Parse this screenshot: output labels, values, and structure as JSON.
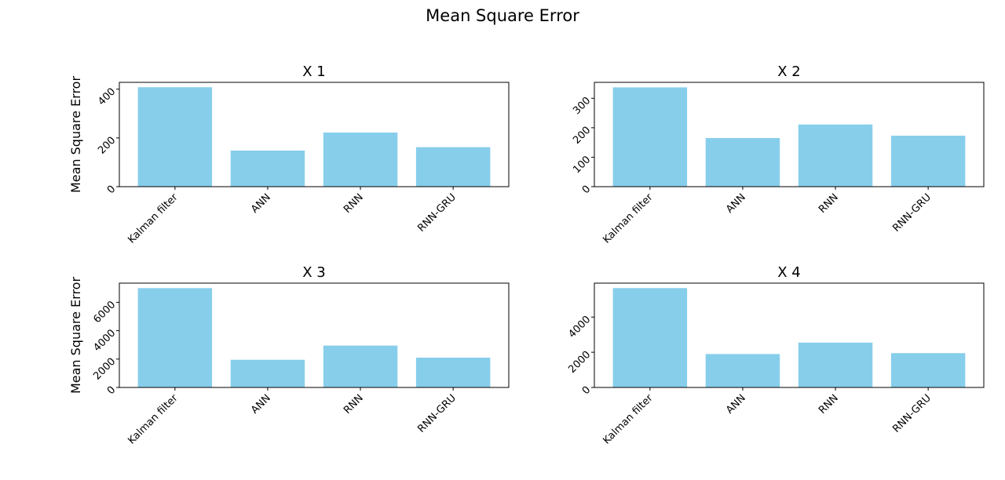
{
  "figure": {
    "suptitle": "Mean Square Error",
    "bar_color": "#87CEEB",
    "axis_color": "#000000"
  },
  "chart_data": [
    {
      "type": "bar",
      "title": "X 1",
      "ylabel": "Mean Square Error",
      "xlabel": "",
      "categories": [
        "Kalman filter",
        "ANN",
        "RNN",
        "RNN-GRU"
      ],
      "values": [
        408,
        148,
        222,
        162
      ],
      "ylim": [
        0,
        428
      ],
      "yticks": [
        0,
        200,
        400
      ]
    },
    {
      "type": "bar",
      "title": "X 2",
      "ylabel": "",
      "xlabel": "",
      "categories": [
        "Kalman filter",
        "ANN",
        "RNN",
        "RNN-GRU"
      ],
      "values": [
        337,
        165,
        211,
        173
      ],
      "ylim": [
        0,
        354
      ],
      "yticks": [
        0,
        100,
        200,
        300
      ]
    },
    {
      "type": "bar",
      "title": "X 3",
      "ylabel": "Mean Square Error",
      "xlabel": "",
      "categories": [
        "Kalman filter",
        "ANN",
        "RNN",
        "RNN-GRU"
      ],
      "values": [
        7000,
        1950,
        2950,
        2100
      ],
      "ylim": [
        0,
        7350
      ],
      "yticks": [
        0,
        2000,
        4000,
        6000
      ]
    },
    {
      "type": "bar",
      "title": "X 4",
      "ylabel": "",
      "xlabel": "",
      "categories": [
        "Kalman filter",
        "ANN",
        "RNN",
        "RNN-GRU"
      ],
      "values": [
        5650,
        1900,
        2550,
        1950
      ],
      "ylim": [
        0,
        5930
      ],
      "yticks": [
        0,
        2000,
        4000
      ]
    }
  ]
}
